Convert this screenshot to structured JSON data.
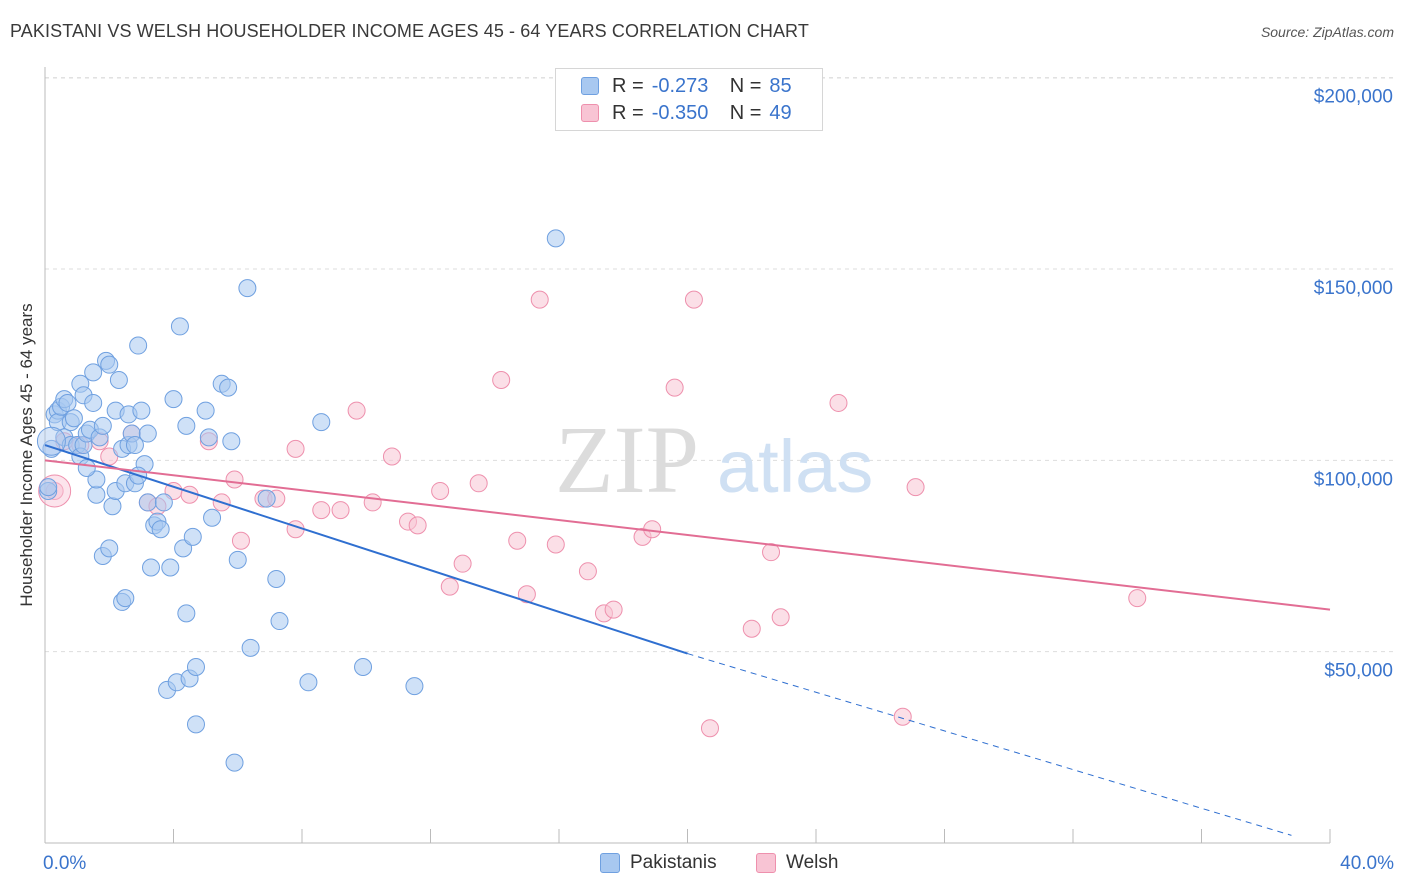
{
  "title": "PAKISTANI VS WELSH HOUSEHOLDER INCOME AGES 45 - 64 YEARS CORRELATION CHART",
  "source": "Source: ZipAtlas.com",
  "watermark": {
    "zip": "ZIP",
    "atlas": "atlas"
  },
  "legend": {
    "rows": [
      {
        "r_label": "R =",
        "r_value": "-0.273",
        "n_label": "N =",
        "n_value": "85",
        "color": "#a8c8f0",
        "stroke": "#6fa0e0"
      },
      {
        "r_label": "R =",
        "r_value": "-0.350",
        "n_label": "N =",
        "n_value": "49",
        "color": "#f8c4d4",
        "stroke": "#ee90ad"
      }
    ]
  },
  "bottom_legend": [
    {
      "label": "Pakistanis",
      "color": "#a8c8f0",
      "stroke": "#6fa0e0"
    },
    {
      "label": "Welsh",
      "color": "#f8c4d4",
      "stroke": "#ee90ad"
    }
  ],
  "chart_data": {
    "type": "scatter",
    "title": "PAKISTANI VS WELSH HOUSEHOLDER INCOME AGES 45 - 64 YEARS CORRELATION CHART",
    "xlabel": "",
    "ylabel": "Householder Income Ages 45 - 64 years",
    "xlim": [
      0,
      40
    ],
    "ylim": [
      0,
      210000
    ],
    "x_tick_labels": [
      "0.0%",
      "40.0%"
    ],
    "y_ticks": [
      50000,
      100000,
      150000,
      200000
    ],
    "y_tick_labels": [
      "$50,000",
      "$100,000",
      "$150,000",
      "$200,000"
    ],
    "grid": true,
    "legend_position": "top-center",
    "series": [
      {
        "name": "Pakistanis",
        "color": "#6fa0e0",
        "fill": "#a8c8f0",
        "trend": {
          "x0": 0,
          "y0": 104000,
          "x1": 20,
          "y1": 49500,
          "dashed_to_x": 38.8,
          "dashed_to_y": 2000,
          "color": "#2f6fd0"
        },
        "points": [
          [
            0.1,
            92000
          ],
          [
            0.2,
            103000
          ],
          [
            0.3,
            112000
          ],
          [
            0.4,
            113000
          ],
          [
            0.4,
            110000
          ],
          [
            0.5,
            114000
          ],
          [
            0.6,
            106000
          ],
          [
            0.6,
            116000
          ],
          [
            0.7,
            115000
          ],
          [
            0.8,
            104000
          ],
          [
            0.8,
            110000
          ],
          [
            0.9,
            111000
          ],
          [
            1.0,
            104000
          ],
          [
            1.1,
            120000
          ],
          [
            1.1,
            101000
          ],
          [
            1.2,
            104000
          ],
          [
            1.2,
            117000
          ],
          [
            1.3,
            107000
          ],
          [
            1.4,
            108000
          ],
          [
            1.5,
            123000
          ],
          [
            1.5,
            115000
          ],
          [
            1.6,
            91000
          ],
          [
            1.6,
            95000
          ],
          [
            1.7,
            106000
          ],
          [
            1.8,
            109000
          ],
          [
            1.8,
            75000
          ],
          [
            1.9,
            126000
          ],
          [
            2.0,
            125000
          ],
          [
            2.0,
            77000
          ],
          [
            2.1,
            88000
          ],
          [
            2.2,
            113000
          ],
          [
            2.2,
            92000
          ],
          [
            2.3,
            121000
          ],
          [
            2.4,
            103000
          ],
          [
            2.4,
            63000
          ],
          [
            2.5,
            94000
          ],
          [
            2.5,
            64000
          ],
          [
            2.6,
            112000
          ],
          [
            2.6,
            104000
          ],
          [
            2.7,
            107000
          ],
          [
            2.8,
            104000
          ],
          [
            2.8,
            94000
          ],
          [
            2.9,
            130000
          ],
          [
            3.0,
            113000
          ],
          [
            3.1,
            99000
          ],
          [
            3.2,
            107000
          ],
          [
            3.2,
            89000
          ],
          [
            3.3,
            72000
          ],
          [
            3.4,
            83000
          ],
          [
            3.5,
            84000
          ],
          [
            3.6,
            82000
          ],
          [
            3.7,
            89000
          ],
          [
            3.8,
            40000
          ],
          [
            3.9,
            72000
          ],
          [
            4.0,
            116000
          ],
          [
            4.1,
            42000
          ],
          [
            4.2,
            135000
          ],
          [
            4.3,
            77000
          ],
          [
            4.4,
            60000
          ],
          [
            4.4,
            109000
          ],
          [
            4.5,
            43000
          ],
          [
            4.6,
            80000
          ],
          [
            4.7,
            46000
          ],
          [
            4.7,
            31000
          ],
          [
            5.0,
            113000
          ],
          [
            5.1,
            106000
          ],
          [
            5.2,
            85000
          ],
          [
            5.5,
            120000
          ],
          [
            5.7,
            119000
          ],
          [
            5.8,
            105000
          ],
          [
            5.9,
            21000
          ],
          [
            6.0,
            74000
          ],
          [
            6.3,
            145000
          ],
          [
            6.4,
            51000
          ],
          [
            6.9,
            90000
          ],
          [
            7.2,
            69000
          ],
          [
            7.3,
            58000
          ],
          [
            8.2,
            42000
          ],
          [
            8.6,
            110000
          ],
          [
            9.9,
            46000
          ],
          [
            11.5,
            41000
          ],
          [
            15.9,
            158000
          ],
          [
            0.1,
            93000
          ],
          [
            1.3,
            98000
          ],
          [
            2.9,
            96000
          ]
        ]
      },
      {
        "name": "Welsh",
        "color": "#ee90ad",
        "fill": "#f8c4d4",
        "trend": {
          "x0": 0,
          "y0": 100000,
          "x1": 40,
          "y1": 61000,
          "color": "#e26d94"
        },
        "points": [
          [
            0.3,
            92000
          ],
          [
            0.6,
            105000
          ],
          [
            1.1,
            104000
          ],
          [
            1.7,
            105000
          ],
          [
            2.0,
            101000
          ],
          [
            2.7,
            107000
          ],
          [
            3.2,
            89000
          ],
          [
            3.5,
            88000
          ],
          [
            4.0,
            92000
          ],
          [
            4.5,
            91000
          ],
          [
            5.1,
            105000
          ],
          [
            5.5,
            89000
          ],
          [
            5.9,
            95000
          ],
          [
            6.1,
            79000
          ],
          [
            6.8,
            90000
          ],
          [
            7.2,
            90000
          ],
          [
            7.8,
            82000
          ],
          [
            7.8,
            103000
          ],
          [
            8.6,
            87000
          ],
          [
            9.2,
            87000
          ],
          [
            9.7,
            113000
          ],
          [
            10.2,
            89000
          ],
          [
            10.8,
            101000
          ],
          [
            11.3,
            84000
          ],
          [
            11.6,
            83000
          ],
          [
            12.3,
            92000
          ],
          [
            12.6,
            67000
          ],
          [
            13.0,
            73000
          ],
          [
            13.5,
            94000
          ],
          [
            14.2,
            121000
          ],
          [
            14.7,
            79000
          ],
          [
            15.0,
            65000
          ],
          [
            15.4,
            142000
          ],
          [
            15.9,
            78000
          ],
          [
            16.9,
            71000
          ],
          [
            17.4,
            60000
          ],
          [
            17.7,
            61000
          ],
          [
            18.6,
            80000
          ],
          [
            18.9,
            82000
          ],
          [
            19.6,
            119000
          ],
          [
            20.2,
            142000
          ],
          [
            20.7,
            30000
          ],
          [
            22.0,
            56000
          ],
          [
            22.6,
            76000
          ],
          [
            22.9,
            59000
          ],
          [
            24.7,
            115000
          ],
          [
            26.7,
            33000
          ],
          [
            27.1,
            93000
          ],
          [
            34.0,
            64000
          ]
        ]
      }
    ]
  }
}
